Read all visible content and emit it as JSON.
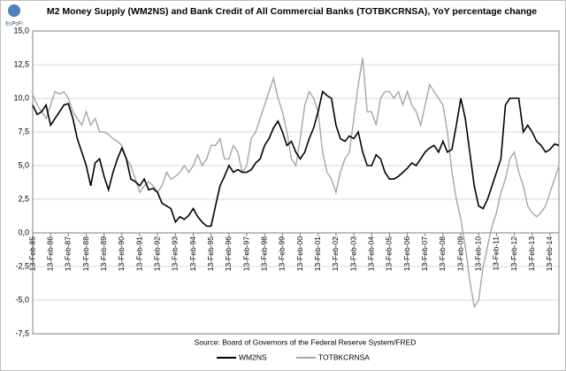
{
  "logo": "EcPoFi",
  "chart_data": {
    "type": "line",
    "title": "M2 Money Supply (WM2NS) and Bank Credit of All Commercial Banks (TOTBKCRNSA), YoY percentage change",
    "source": "Source: Board of Governors of the Federal Reserve System/FRED",
    "x": [
      1985.12,
      1985.37,
      1985.62,
      1985.87,
      1986.12,
      1986.37,
      1986.62,
      1986.87,
      1987.12,
      1987.37,
      1987.62,
      1987.87,
      1988.12,
      1988.37,
      1988.62,
      1988.87,
      1989.12,
      1989.37,
      1989.62,
      1989.87,
      1990.12,
      1990.37,
      1990.62,
      1990.87,
      1991.12,
      1991.37,
      1991.62,
      1991.87,
      1992.12,
      1992.37,
      1992.62,
      1992.87,
      1993.12,
      1993.37,
      1993.62,
      1993.87,
      1994.12,
      1994.37,
      1994.62,
      1994.87,
      1995.12,
      1995.37,
      1995.62,
      1995.87,
      1996.12,
      1996.37,
      1996.62,
      1996.87,
      1997.12,
      1997.37,
      1997.62,
      1997.87,
      1998.12,
      1998.37,
      1998.62,
      1998.87,
      1999.12,
      1999.37,
      1999.62,
      1999.87,
      2000.12,
      2000.37,
      2000.62,
      2000.87,
      2001.12,
      2001.37,
      2001.62,
      2001.87,
      2002.12,
      2002.37,
      2002.62,
      2002.87,
      2003.12,
      2003.37,
      2003.62,
      2003.87,
      2004.12,
      2004.37,
      2004.62,
      2004.87,
      2005.12,
      2005.37,
      2005.62,
      2005.87,
      2006.12,
      2006.37,
      2006.62,
      2006.87,
      2007.12,
      2007.37,
      2007.62,
      2007.87,
      2008.12,
      2008.37,
      2008.62,
      2008.87,
      2009.12,
      2009.37,
      2009.62,
      2009.87,
      2010.12,
      2010.37,
      2010.62,
      2010.87,
      2011.12,
      2011.37,
      2011.62,
      2011.87,
      2012.12,
      2012.37,
      2012.62,
      2012.87,
      2013.12,
      2013.37,
      2013.62,
      2013.87,
      2014.12,
      2014.37,
      2014.62
    ],
    "series": [
      {
        "name": "WM2NS",
        "color": "#000000",
        "width": 1.6,
        "values": [
          9.5,
          8.8,
          9.0,
          9.5,
          8.0,
          8.5,
          9.0,
          9.5,
          9.6,
          8.5,
          7.0,
          6.0,
          5.0,
          3.5,
          5.2,
          5.5,
          4.2,
          3.2,
          4.5,
          5.5,
          6.3,
          5.5,
          4.0,
          3.8,
          3.5,
          4.0,
          3.2,
          3.3,
          3.0,
          2.2,
          2.0,
          1.8,
          0.8,
          1.2,
          1.0,
          1.3,
          1.8,
          1.2,
          0.8,
          0.5,
          0.5,
          2.0,
          3.5,
          4.2,
          5.0,
          4.5,
          4.7,
          4.5,
          4.5,
          4.7,
          5.2,
          5.5,
          6.5,
          7.0,
          7.8,
          8.3,
          7.5,
          6.5,
          6.8,
          6.0,
          5.5,
          6.0,
          7.0,
          7.8,
          9.0,
          10.5,
          10.2,
          10.0,
          8.0,
          7.0,
          6.8,
          7.2,
          7.0,
          7.5,
          6.0,
          5.0,
          5.0,
          5.8,
          5.5,
          4.5,
          4.0,
          4.0,
          4.2,
          4.5,
          4.8,
          5.2,
          5.0,
          5.5,
          6.0,
          6.3,
          6.5,
          6.0,
          6.8,
          6.0,
          6.2,
          8.0,
          10.0,
          8.5,
          6.0,
          3.5,
          2.0,
          1.8,
          2.5,
          3.5,
          4.5,
          5.5,
          9.5,
          10.0,
          10.0,
          10.0,
          7.5,
          8.0,
          7.5,
          6.8,
          6.5,
          6.0,
          6.2,
          6.6,
          6.5
        ]
      },
      {
        "name": "TOTBKCRNSA",
        "color": "#a6a6a6",
        "width": 1.4,
        "values": [
          10.3,
          9.5,
          9.0,
          8.5,
          9.5,
          10.5,
          10.3,
          10.5,
          10.0,
          9.0,
          8.5,
          8.0,
          9.0,
          8.0,
          8.5,
          7.5,
          7.5,
          7.3,
          7.0,
          6.8,
          6.5,
          5.5,
          5.0,
          4.0,
          3.0,
          3.5,
          3.8,
          3.5,
          3.0,
          3.5,
          4.5,
          4.0,
          4.2,
          4.5,
          5.0,
          4.5,
          5.0,
          5.8,
          5.0,
          5.5,
          6.5,
          6.5,
          7.0,
          5.5,
          5.5,
          6.5,
          6.0,
          4.5,
          5.0,
          7.0,
          7.5,
          8.5,
          9.5,
          10.5,
          11.5,
          10.0,
          9.0,
          7.5,
          5.5,
          5.0,
          7.0,
          9.5,
          10.5,
          10.0,
          9.0,
          6.0,
          4.5,
          4.0,
          3.0,
          4.5,
          5.5,
          6.0,
          8.5,
          11.0,
          13.0,
          9.0,
          9.0,
          8.0,
          10.0,
          10.5,
          10.5,
          10.0,
          10.5,
          9.5,
          10.5,
          9.5,
          9.0,
          8.0,
          9.5,
          11.0,
          10.5,
          10.0,
          9.5,
          7.5,
          4.5,
          2.5,
          1.0,
          -1.0,
          -3.5,
          -5.5,
          -5.0,
          -2.5,
          -1.0,
          0.5,
          1.5,
          3.0,
          4.0,
          5.5,
          6.0,
          4.5,
          3.5,
          2.0,
          1.5,
          1.2,
          1.5,
          2.0,
          3.0,
          4.0,
          5.0
        ]
      }
    ],
    "xlim": [
      1985.12,
      2014.62
    ],
    "xticks": [
      {
        "value": 1985.12,
        "label": "13-Feb-85"
      },
      {
        "value": 1986.12,
        "label": "13-Feb-86"
      },
      {
        "value": 1987.12,
        "label": "13-Feb-87"
      },
      {
        "value": 1988.12,
        "label": "13-Feb-88"
      },
      {
        "value": 1989.12,
        "label": "13-Feb-89"
      },
      {
        "value": 1990.12,
        "label": "13-Feb-90"
      },
      {
        "value": 1991.12,
        "label": "13-Feb-91"
      },
      {
        "value": 1992.12,
        "label": "13-Feb-92"
      },
      {
        "value": 1993.12,
        "label": "13-Feb-93"
      },
      {
        "value": 1994.12,
        "label": "13-Feb-94"
      },
      {
        "value": 1995.12,
        "label": "13-Feb-95"
      },
      {
        "value": 1996.12,
        "label": "13-Feb-96"
      },
      {
        "value": 1997.12,
        "label": "13-Feb-97"
      },
      {
        "value": 1998.12,
        "label": "13-Feb-98"
      },
      {
        "value": 1999.12,
        "label": "13-Feb-99"
      },
      {
        "value": 2000.12,
        "label": "13-Feb-00"
      },
      {
        "value": 2001.12,
        "label": "13-Feb-01"
      },
      {
        "value": 2002.12,
        "label": "13-Feb-02"
      },
      {
        "value": 2003.12,
        "label": "13-Feb-03"
      },
      {
        "value": 2004.12,
        "label": "13-Feb-04"
      },
      {
        "value": 2005.12,
        "label": "13-Feb-05"
      },
      {
        "value": 2006.12,
        "label": "13-Feb-06"
      },
      {
        "value": 2007.12,
        "label": "13-Feb-07"
      },
      {
        "value": 2008.12,
        "label": "13-Feb-08"
      },
      {
        "value": 2009.12,
        "label": "13-Feb-09"
      },
      {
        "value": 2010.12,
        "label": "13-Feb-10"
      },
      {
        "value": 2011.12,
        "label": "13-Feb-11"
      },
      {
        "value": 2012.12,
        "label": "13-Feb-12"
      },
      {
        "value": 2013.12,
        "label": "13-Feb-13"
      },
      {
        "value": 2014.12,
        "label": "13-Feb-14"
      }
    ],
    "ylim": [
      -7.5,
      15
    ],
    "yticks": [
      {
        "value": -7.5,
        "label": "-7,5"
      },
      {
        "value": -5,
        "label": "-5,0"
      },
      {
        "value": -2.5,
        "label": "-2,5"
      },
      {
        "value": 0,
        "label": "0,0"
      },
      {
        "value": 2.5,
        "label": "2,5"
      },
      {
        "value": 5,
        "label": "5,0"
      },
      {
        "value": 7.5,
        "label": "7,5"
      },
      {
        "value": 10,
        "label": "10,0"
      },
      {
        "value": 12.5,
        "label": "12,5"
      },
      {
        "value": 15,
        "label": "15,0"
      }
    ],
    "grid": true
  }
}
